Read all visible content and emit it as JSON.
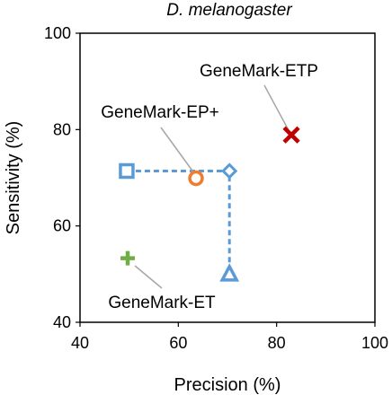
{
  "chart_data": {
    "type": "scatter",
    "title": "D. melanogaster",
    "xlabel": "Precision (%)",
    "ylabel": "Sensitivity (%)",
    "xlim": [
      40,
      100
    ],
    "ylim": [
      40,
      100
    ],
    "xticks": [
      "40",
      "60",
      "80",
      "100"
    ],
    "yticks": [
      "40",
      "60",
      "80",
      "100"
    ],
    "grid": false,
    "legend": "none",
    "points": [
      {
        "marker": "plus",
        "color": "#70AD47",
        "x": 49.7,
        "y": 53.3,
        "label": "GeneMark-ET"
      },
      {
        "marker": "circle",
        "color": "#ED7D31",
        "x": 63.6,
        "y": 69.9,
        "label": "GeneMark-EP+"
      },
      {
        "marker": "cross",
        "color": "#C00000",
        "x": 83.0,
        "y": 78.9,
        "label": "GeneMark-ETP"
      },
      {
        "marker": "square",
        "color": "#5B9BD5",
        "x": 49.5,
        "y": 71.4,
        "label": ""
      },
      {
        "marker": "diamond",
        "color": "#5B9BD5",
        "x": 70.4,
        "y": 71.4,
        "label": ""
      },
      {
        "marker": "triangle",
        "color": "#5B9BD5",
        "x": 70.4,
        "y": 49.9,
        "label": ""
      }
    ],
    "dashed_path": {
      "color": "#5B9BD5",
      "points": [
        [
          49.5,
          71.4
        ],
        [
          70.4,
          71.4
        ],
        [
          70.4,
          49.9
        ]
      ]
    }
  }
}
